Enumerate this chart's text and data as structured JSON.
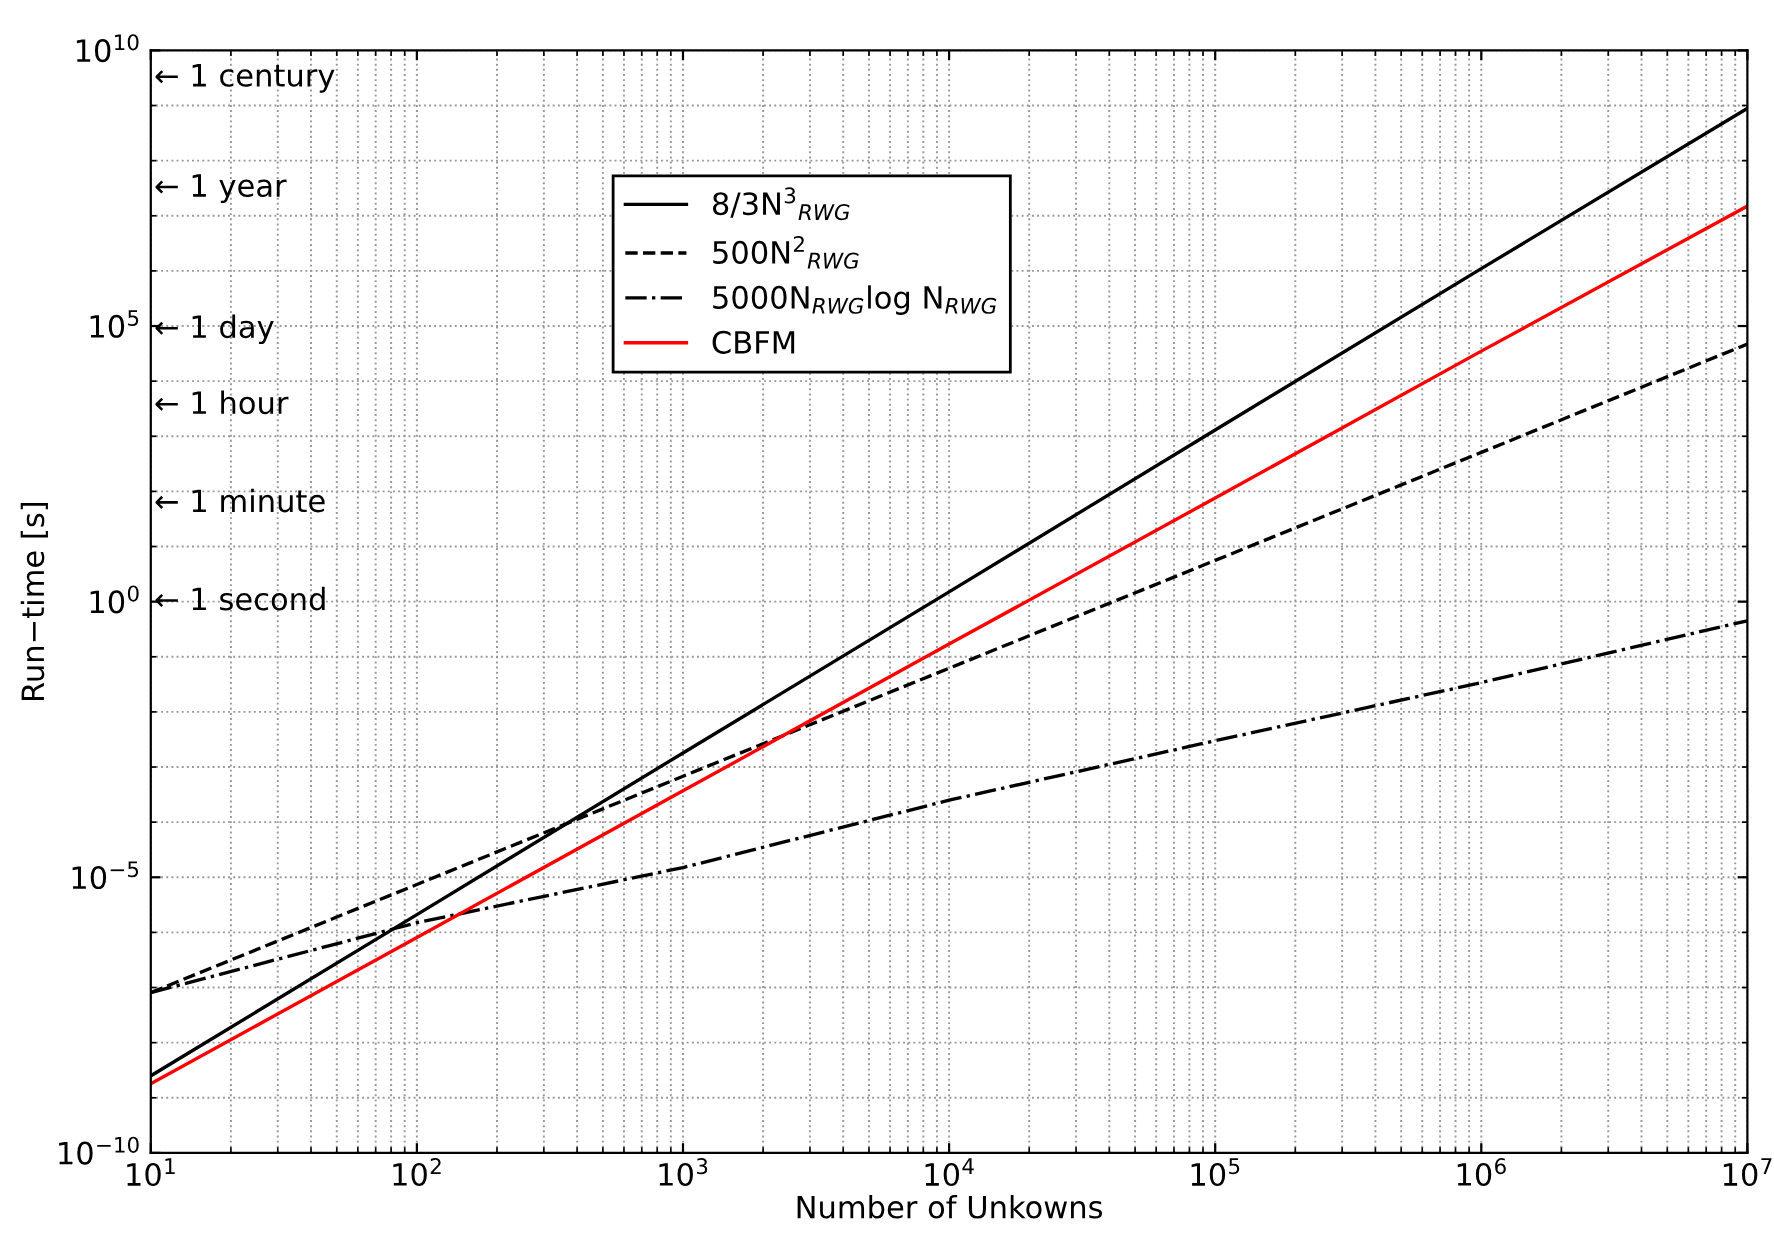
{
  "chart_data": {
    "type": "line",
    "xlabel": "Number of Unkowns",
    "ylabel": "Run−time [s]",
    "log": "xy",
    "grid": true,
    "legend": "top",
    "xlim": [
      10,
      10000000
    ],
    "ylim": [
      1e-10,
      10000000000
    ],
    "xticks": [
      {
        "value": 10,
        "label": "10$^{1}$"
      },
      {
        "value": 100,
        "label": "10$^{2}$"
      },
      {
        "value": 1000,
        "label": "10$^{3}$"
      },
      {
        "value": 10000,
        "label": "10$^{4}$"
      },
      {
        "value": 100000,
        "label": "10$^{5}$"
      },
      {
        "value": 1000000,
        "label": "10$^{6}$"
      },
      {
        "value": 10000000,
        "label": "10$^{7}$"
      }
    ],
    "yticks": [
      {
        "value": 1e-10,
        "label": "10$^{−10}$"
      },
      {
        "value": 1e-05,
        "label": "10$^{−5}$"
      },
      {
        "value": 1,
        "label": "10$^{0}$"
      },
      {
        "value": 100000,
        "label": "10$^{5}$"
      },
      {
        "value": 10000000000,
        "label": "10$^{10}$"
      }
    ],
    "x": [
      10,
      100,
      1000,
      10000,
      100000,
      1000000,
      10000000
    ],
    "series": [
      {
        "name": "8/3N$^{3}$$_{RWG}$",
        "color": "#000000",
        "line_style": "solid",
        "values": [
          2.5e-09,
          2.1e-06,
          0.0018,
          1.5,
          1300,
          1100000,
          890000000
        ]
      },
      {
        "name": "500N$^{2}$$_{RWG}$",
        "color": "#000000",
        "line_style": "dashed",
        "values": [
          8.1e-08,
          7.4e-06,
          0.00068,
          0.062,
          5.6,
          510,
          47000
        ]
      },
      {
        "name": "5000N$_{RWG}$log N$_{RWG}$",
        "color": "#000000",
        "line_style": "dashdot",
        "values": [
          8.1e-08,
          1.5e-06,
          1.5e-05,
          0.00025,
          0.003,
          0.034,
          0.45
        ]
      },
      {
        "name": "CBFM",
        "color": "#ff0000",
        "line_style": "solid",
        "values": [
          1.8e-09,
          8.1e-07,
          0.00037,
          0.17,
          76,
          35000,
          15000000
        ]
      }
    ],
    "annotations": [
      "← 1 century",
      "← 1 year",
      "← 1 day",
      "← 1 hour",
      "← 1 minute",
      "← 1 second"
    ]
  }
}
